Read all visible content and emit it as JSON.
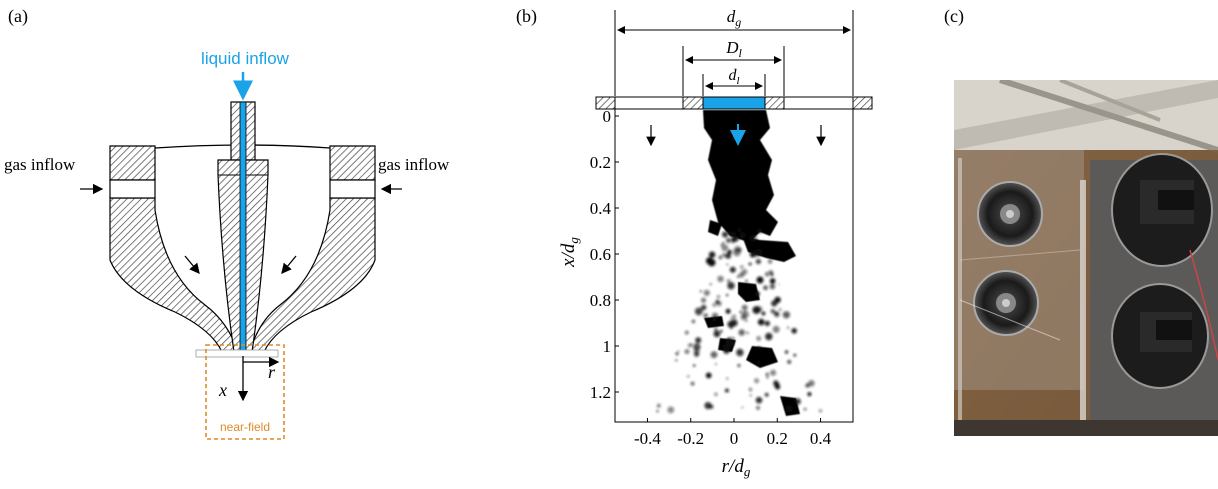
{
  "panel_a": {
    "label": "(a)",
    "liquid_inflow": "liquid inflow",
    "gas_inflow_left": "gas inflow",
    "gas_inflow_right": "gas inflow",
    "axis_r": "r",
    "axis_x": "x",
    "near_field": "near-field",
    "colors": {
      "liquid": "#1aa3e8",
      "near_field": "#e08a2a",
      "hatch": "#555555"
    }
  },
  "panel_b": {
    "label": "(b)",
    "dim_dg": "d",
    "dim_dg_sub": "g",
    "dim_Dl": "D",
    "dim_Dl_sub": "l",
    "dim_dl": "d",
    "dim_dl_sub": "l",
    "y_axis_label": "x/d",
    "y_axis_sub": "g",
    "x_axis_label": "r/d",
    "x_axis_sub": "g"
  },
  "panel_c": {
    "label": "(c)"
  },
  "chart_data": {
    "type": "scatter",
    "xlim": [
      -0.55,
      0.55
    ],
    "ylim": [
      1.3,
      0
    ],
    "xticks": [
      "-0.4",
      "-0.2",
      "0",
      "0.2",
      "0.4"
    ],
    "xtick_values": [
      -0.4,
      -0.2,
      0,
      0.2,
      0.4
    ],
    "yticks": [
      "0",
      "0.2",
      "0.4",
      "0.6",
      "0.8",
      "1",
      "1.2"
    ],
    "ytick_values": [
      0,
      0.2,
      0.4,
      0.6,
      0.8,
      1.0,
      1.2
    ],
    "grid": false
  }
}
